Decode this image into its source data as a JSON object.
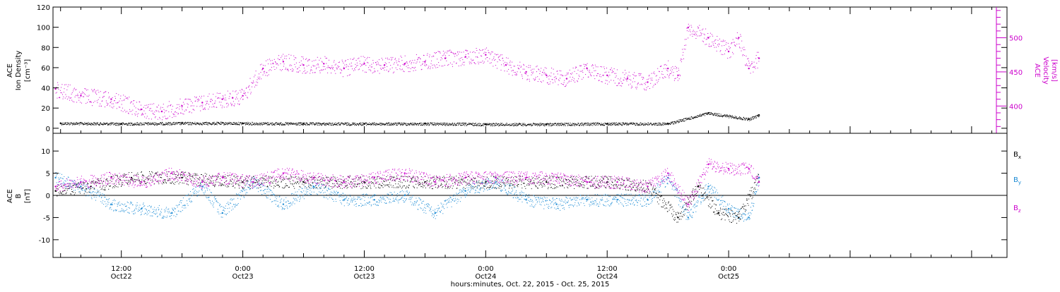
{
  "colors": {
    "black": "#000000",
    "magenta": "#cc00cc",
    "blue": "#1a8ad4"
  },
  "x_axis": {
    "title": "hours:minutes, Oct. 22, 2015 - Oct. 25, 2015",
    "ticks": [
      {
        "time": "12:00",
        "date": "Oct22"
      },
      {
        "time": "0:00",
        "date": "Oct23"
      },
      {
        "time": "12:00",
        "date": "Oct23"
      },
      {
        "time": "0:00",
        "date": "Oct24"
      },
      {
        "time": "12:00",
        "date": "Oct24"
      },
      {
        "time": "0:00",
        "date": "Oct25"
      }
    ]
  },
  "chart_data": [
    {
      "type": "scatter",
      "panel": "top",
      "xlim": [
        "2015-10-22T05:15",
        "2015-10-26T03:30"
      ],
      "ylabel_left": [
        "ACE",
        "Ion Density",
        "[cm⁻³]"
      ],
      "ylabel_right": [
        "ACE",
        "Velocity",
        "[km/s]"
      ],
      "ylim_left": [
        -5,
        120
      ],
      "yticks_left": [
        "0",
        "20",
        "40",
        "60",
        "80",
        "100",
        "120"
      ],
      "ylim_right": [
        360,
        545
      ],
      "yticks_right": [
        "400",
        "450",
        "500"
      ],
      "series": [
        {
          "axis": "left",
          "color": "#000000",
          "x": [
            "2015-10-22T06:00",
            "2015-10-22T12:00",
            "2015-10-22T18:00",
            "2015-10-23T00:00",
            "2015-10-23T06:00",
            "2015-10-23T12:00",
            "2015-10-23T18:00",
            "2015-10-24T00:00",
            "2015-10-24T06:00",
            "2015-10-24T12:00",
            "2015-10-24T18:00",
            "2015-10-24T22:00",
            "2015-10-25T02:00",
            "2015-10-25T03:00"
          ],
          "y": [
            5,
            4.5,
            5,
            5,
            4.5,
            4.5,
            4.5,
            4,
            4,
            4.5,
            4.5,
            15,
            9,
            13
          ]
        },
        {
          "axis": "right",
          "color": "#cc00cc",
          "x": [
            "2015-10-22T05:30",
            "2015-10-22T08:00",
            "2015-10-22T11:00",
            "2015-10-22T14:00",
            "2015-10-22T16:00",
            "2015-10-22T18:00",
            "2015-10-22T20:00",
            "2015-10-22T22:00",
            "2015-10-22T23:00",
            "2015-10-23T00:00",
            "2015-10-23T02:00",
            "2015-10-23T04:00",
            "2015-10-23T06:00",
            "2015-10-23T08:00",
            "2015-10-23T10:00",
            "2015-10-23T12:00",
            "2015-10-23T14:00",
            "2015-10-23T16:00",
            "2015-10-23T18:00",
            "2015-10-23T20:00",
            "2015-10-23T22:00",
            "2015-10-24T00:00",
            "2015-10-24T02:00",
            "2015-10-24T04:00",
            "2015-10-24T06:00",
            "2015-10-24T08:00",
            "2015-10-24T10:00",
            "2015-10-24T12:00",
            "2015-10-24T14:00",
            "2015-10-24T16:00",
            "2015-10-24T18:00",
            "2015-10-24T19:00",
            "2015-10-24T20:00",
            "2015-10-24T22:00",
            "2015-10-25T00:00",
            "2015-10-25T01:00",
            "2015-10-25T02:00",
            "2015-10-25T03:00"
          ],
          "y": [
            425,
            415,
            410,
            395,
            392,
            400,
            405,
            410,
            412,
            415,
            455,
            465,
            460,
            462,
            455,
            462,
            460,
            462,
            465,
            470,
            472,
            475,
            460,
            450,
            445,
            440,
            455,
            445,
            440,
            435,
            455,
            445,
            515,
            500,
            480,
            500,
            455,
            470
          ]
        }
      ]
    },
    {
      "type": "scatter",
      "panel": "bottom",
      "xlim": [
        "2015-10-22T05:15",
        "2015-10-26T03:30"
      ],
      "ylabel_left": [
        "ACE",
        "B",
        "[nT]"
      ],
      "ylim": [
        -14,
        14
      ],
      "yticks": [
        "-10",
        "-5",
        "0",
        "5",
        "10"
      ],
      "zero_line": true,
      "legend_position": "right",
      "legend": [
        "Bx",
        "By",
        "Bz"
      ],
      "series": [
        {
          "name": "Bx",
          "color": "#000000",
          "x": [
            "2015-10-22T05:30",
            "2015-10-22T09:00",
            "2015-10-22T13:00",
            "2015-10-22T18:00",
            "2015-10-23T00:00",
            "2015-10-23T06:00",
            "2015-10-23T12:00",
            "2015-10-23T18:00",
            "2015-10-24T00:00",
            "2015-10-24T06:00",
            "2015-10-24T12:00",
            "2015-10-24T16:00",
            "2015-10-24T19:00",
            "2015-10-24T21:00",
            "2015-10-24T23:00",
            "2015-10-25T01:00",
            "2015-10-25T03:00"
          ],
          "y": [
            1,
            2,
            4,
            4,
            3,
            3,
            3,
            3,
            3,
            3,
            3,
            2,
            -5,
            2,
            -4,
            -5,
            4
          ]
        },
        {
          "name": "By",
          "color": "#1a8ad4",
          "x": [
            "2015-10-22T05:30",
            "2015-10-22T08:00",
            "2015-10-22T11:00",
            "2015-10-22T14:00",
            "2015-10-22T17:00",
            "2015-10-22T20:00",
            "2015-10-22T22:00",
            "2015-10-23T01:00",
            "2015-10-23T04:00",
            "2015-10-23T07:00",
            "2015-10-23T10:00",
            "2015-10-23T13:00",
            "2015-10-23T16:00",
            "2015-10-23T19:00",
            "2015-10-23T22:00",
            "2015-10-24T01:00",
            "2015-10-24T04:00",
            "2015-10-24T07:00",
            "2015-10-24T10:00",
            "2015-10-24T13:00",
            "2015-10-24T16:00",
            "2015-10-24T18:00",
            "2015-10-24T20:00",
            "2015-10-24T22:00",
            "2015-10-25T00:00",
            "2015-10-25T02:00",
            "2015-10-25T03:00"
          ],
          "y": [
            4,
            2,
            -2,
            -3,
            -4,
            2,
            -4,
            3,
            -2,
            2,
            -1,
            -1,
            0,
            -4,
            1,
            3,
            -1,
            -2,
            -1,
            -1,
            -1,
            4,
            -5,
            2,
            -3,
            -5,
            4
          ]
        },
        {
          "name": "Bz",
          "color": "#cc00cc",
          "x": [
            "2015-10-22T05:30",
            "2015-10-22T08:00",
            "2015-10-22T11:00",
            "2015-10-22T14:00",
            "2015-10-22T17:00",
            "2015-10-22T20:00",
            "2015-10-22T22:00",
            "2015-10-23T01:00",
            "2015-10-23T04:00",
            "2015-10-23T07:00",
            "2015-10-23T10:00",
            "2015-10-23T13:00",
            "2015-10-23T16:00",
            "2015-10-23T19:00",
            "2015-10-23T22:00",
            "2015-10-24T01:00",
            "2015-10-24T04:00",
            "2015-10-24T07:00",
            "2015-10-24T10:00",
            "2015-10-24T13:00",
            "2015-10-24T16:00",
            "2015-10-24T18:00",
            "2015-10-24T20:00",
            "2015-10-24T22:00",
            "2015-10-25T00:00",
            "2015-10-25T02:00",
            "2015-10-25T03:00"
          ],
          "y": [
            2,
            3,
            4,
            3,
            5,
            3,
            4,
            3,
            5,
            4,
            3,
            4,
            5,
            3,
            4,
            4,
            4,
            4,
            3,
            3,
            2,
            5,
            -2,
            7,
            6,
            6,
            3
          ]
        }
      ]
    }
  ]
}
